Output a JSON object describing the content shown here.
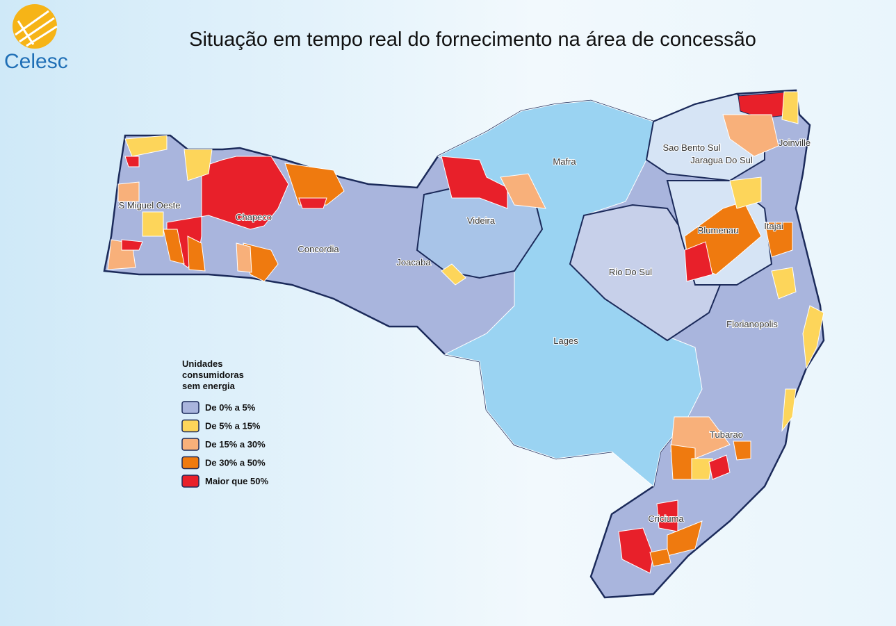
{
  "header": {
    "logo": "Celesc",
    "title": "Situação em tempo real do fornecimento na área de concessão"
  },
  "legend": {
    "title_lines": [
      "Unidades",
      "consumidoras",
      "sem energia"
    ],
    "items": [
      {
        "label": "De 0% a 5%",
        "color": "#a9b5dd"
      },
      {
        "label": "De 5% a 15%",
        "color": "#fdd55a"
      },
      {
        "label": "De 15% a 30%",
        "color": "#f8b07a"
      },
      {
        "label": "De 30% a 50%",
        "color": "#ef7a0f"
      },
      {
        "label": "Maior que 50%",
        "color": "#e8202a"
      }
    ]
  },
  "regions": [
    {
      "label": "S Miguel Oeste"
    },
    {
      "label": "Chapeco"
    },
    {
      "label": "Concordia"
    },
    {
      "label": "Joacaba"
    },
    {
      "label": "Videira"
    },
    {
      "label": "Mafra"
    },
    {
      "label": "Sao Bento Sul"
    },
    {
      "label": "Jaragua Do Sul"
    },
    {
      "label": "Joinville"
    },
    {
      "label": "Blumenau"
    },
    {
      "label": "Itajai"
    },
    {
      "label": "Rio Do Sul"
    },
    {
      "label": "Lages"
    },
    {
      "label": "Florianopolis"
    },
    {
      "label": "Tubarao"
    },
    {
      "label": "Criciuma"
    }
  ]
}
